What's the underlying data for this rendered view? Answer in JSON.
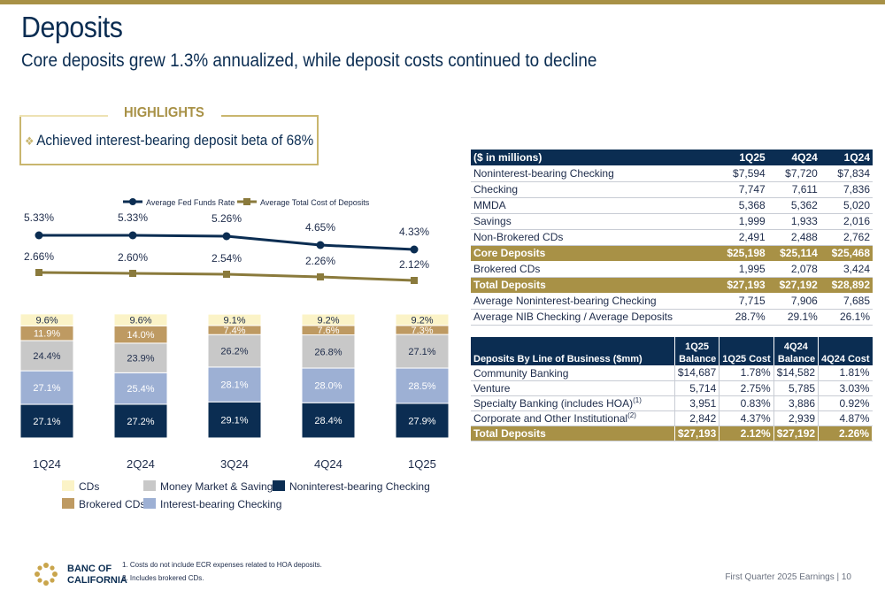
{
  "slide": {
    "title": "Deposits",
    "subtitle": "Core deposits grew 1.3% annualized, while deposit costs continued to decline",
    "page_label": "First Quarter 2025 Earnings |",
    "page_number": "10"
  },
  "highlights": {
    "title": "HIGHLIGHTS",
    "items": [
      "Achieved interest-bearing deposit beta of 68%"
    ]
  },
  "chart_data": {
    "type": "bar",
    "stacked": true,
    "categories": [
      "1Q24",
      "2Q24",
      "3Q24",
      "4Q24",
      "1Q25"
    ],
    "series": [
      {
        "name": "Noninterest-bearing Checking",
        "color": "#0b2d52",
        "values": [
          27.1,
          27.2,
          29.1,
          28.4,
          27.9
        ],
        "labels": [
          "27.1%",
          "27.2%",
          "29.1%",
          "28.4%",
          "27.9%"
        ]
      },
      {
        "name": "Interest-bearing Checking",
        "color": "#9db0d4",
        "values": [
          27.1,
          25.4,
          28.1,
          28.0,
          28.5
        ],
        "labels": [
          "27.1%",
          "25.4%",
          "28.1%",
          "28.0%",
          "28.5%"
        ]
      },
      {
        "name": "Money Market & Savings",
        "color": "#c8c8c8",
        "values": [
          24.4,
          23.9,
          26.2,
          26.8,
          27.1
        ],
        "labels": [
          "24.4%",
          "23.9%",
          "26.2%",
          "26.8%",
          "27.1%"
        ]
      },
      {
        "name": "Brokered CDs",
        "color": "#be9a62",
        "values": [
          11.9,
          14.0,
          7.4,
          7.6,
          7.3
        ],
        "labels": [
          "11.9%",
          "14.0%",
          "7.4%",
          "7.6%",
          "7.3%"
        ]
      },
      {
        "name": "CDs",
        "color": "#fbf3c7",
        "values": [
          9.6,
          9.6,
          9.1,
          9.2,
          9.2
        ],
        "labels": [
          "9.6%",
          "9.6%",
          "9.1%",
          "9.2%",
          "9.2%"
        ]
      }
    ],
    "lines": [
      {
        "name": "Average Fed Funds Rate",
        "color": "#0b2d52",
        "marker": "circle",
        "values": [
          5.33,
          5.33,
          5.26,
          4.65,
          4.33
        ],
        "labels": [
          "5.33%",
          "5.33%",
          "5.26%",
          "4.65%",
          "4.33%"
        ]
      },
      {
        "name": "Average Total Cost of Deposits",
        "color": "#8a7a3c",
        "marker": "square",
        "values": [
          2.66,
          2.6,
          2.54,
          2.26,
          2.12
        ],
        "labels": [
          "2.66%",
          "2.60%",
          "2.54%",
          "2.26%",
          "2.12%"
        ]
      }
    ],
    "line_legend": [
      "Average Fed Funds Rate",
      "Average Total Cost of Deposits"
    ],
    "bar_legend": [
      "CDs",
      "Money Market & Savings",
      "Noninterest-bearing Checking",
      "Brokered CDs",
      "Interest-bearing Checking"
    ],
    "legend_placement": "bottom"
  },
  "deposits_table": {
    "headers": [
      "($ in millions)",
      "1Q25",
      "4Q24",
      "1Q24"
    ],
    "rows": [
      {
        "label": "Noninterest-bearing Checking",
        "v": [
          "$7,594",
          "$7,720",
          "$7,834"
        ],
        "style": ""
      },
      {
        "label": "Checking",
        "v": [
          "7,747",
          "7,611",
          "7,836"
        ],
        "style": ""
      },
      {
        "label": "MMDA",
        "v": [
          "5,368",
          "5,362",
          "5,020"
        ],
        "style": ""
      },
      {
        "label": "Savings",
        "v": [
          "1,999",
          "1,933",
          "2,016"
        ],
        "style": ""
      },
      {
        "label": "Non-Brokered CDs",
        "v": [
          "2,491",
          "2,488",
          "2,762"
        ],
        "style": ""
      },
      {
        "label": "Core Deposits",
        "v": [
          "$25,198",
          "$25,114",
          "$25,468"
        ],
        "style": "gold"
      },
      {
        "label": "Brokered CDs",
        "v": [
          "1,995",
          "2,078",
          "3,424"
        ],
        "style": ""
      },
      {
        "label": "Total Deposits",
        "v": [
          "$27,193",
          "$27,192",
          "$28,892"
        ],
        "style": "gold"
      },
      {
        "label": "Average Noninterest-bearing Checking",
        "v": [
          "7,715",
          "7,906",
          "7,685"
        ],
        "style": ""
      },
      {
        "label": "Average NIB Checking / Average Deposits",
        "v": [
          "28.7%",
          "29.1%",
          "26.1%"
        ],
        "style": ""
      }
    ]
  },
  "lob_table": {
    "headers": {
      "label": "Deposits By Line of Business ($mm)",
      "c1_top": "1Q25",
      "c1_bottom": "Balance",
      "c2": "1Q25 Cost",
      "c3_top": "4Q24",
      "c3_bottom": "Balance",
      "c4": "4Q24 Cost"
    },
    "rows": [
      {
        "label": "Community Banking",
        "sup": "",
        "v": [
          "$14,687",
          "1.78%",
          "$14,582",
          "1.81%"
        ],
        "style": ""
      },
      {
        "label": "Venture",
        "sup": "",
        "v": [
          "5,714",
          "2.75%",
          "5,785",
          "3.03%"
        ],
        "style": ""
      },
      {
        "label": "Specialty Banking (includes HOA)",
        "sup": "(1)",
        "v": [
          "3,951",
          "0.83%",
          "3,886",
          "0.92%"
        ],
        "style": ""
      },
      {
        "label": "Corporate and Other Institutional",
        "sup": "(2)",
        "v": [
          "2,842",
          "4.37%",
          "2,939",
          "4.87%"
        ],
        "style": ""
      },
      {
        "label": "Total Deposits",
        "sup": "",
        "v": [
          "$27,193",
          "2.12%",
          "$27,192",
          "2.26%"
        ],
        "style": "gold"
      }
    ]
  },
  "footnotes": [
    "1.  Costs do not include ECR expenses related to HOA deposits.",
    "2.  Includes brokered CDs."
  ],
  "logo": {
    "line1": "BANC OF",
    "line2": "CALIFORNIA"
  }
}
